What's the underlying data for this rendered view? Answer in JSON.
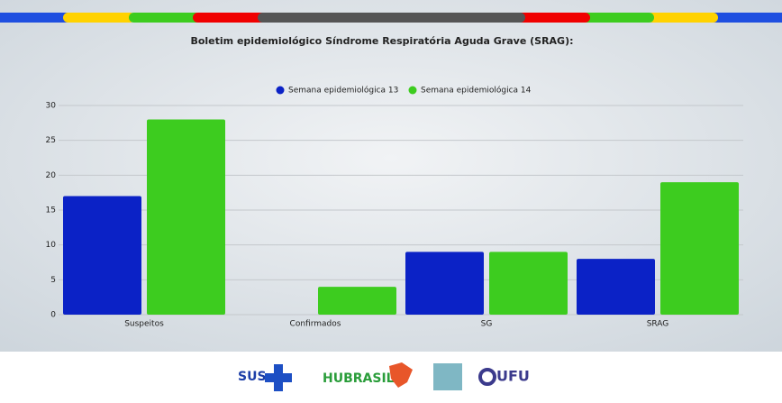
{
  "chart_data": {
    "type": "bar",
    "title": "Boletim epidemiológico Síndrome Respiratória Aguda Grave (SRAG):",
    "categories": [
      "Suspeitos",
      "Confirmados",
      "SG",
      "SRAG"
    ],
    "series": [
      {
        "name": "Semana epidemiológica 13",
        "color": "#0b22c6",
        "values": [
          17,
          0,
          9,
          8
        ]
      },
      {
        "name": "Semana epidemiológica 14",
        "color": "#3dcc1f",
        "values": [
          28,
          4,
          9,
          19
        ]
      }
    ],
    "ylim": [
      0,
      30
    ],
    "yticks": [
      0,
      5,
      10,
      15,
      20,
      25,
      30
    ],
    "grid": true,
    "legend": "top"
  },
  "footer": {
    "logos": [
      "SUS",
      "HUBRASIL",
      "UFU"
    ]
  }
}
